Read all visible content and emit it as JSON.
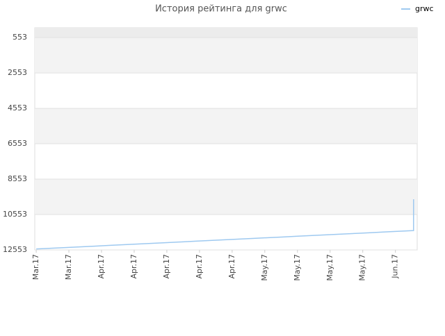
{
  "chart_data": {
    "type": "line",
    "title": "История рейтинга для grwc",
    "x": [
      0,
      4,
      8,
      12,
      16,
      20,
      24,
      28,
      32,
      36,
      40,
      44,
      48,
      52,
      56,
      60,
      64,
      68,
      72,
      76,
      80,
      84,
      88,
      92,
      96,
      100,
      104,
      104
    ],
    "series": [
      {
        "name": "grwc",
        "color": "#9ec9f0",
        "values": [
          12500,
          12460,
          12420,
          12380,
          12340,
          12300,
          12260,
          12220,
          12180,
          12140,
          12100,
          12060,
          12020,
          11980,
          11940,
          11900,
          11860,
          11820,
          11780,
          11740,
          11700,
          11660,
          11620,
          11580,
          11540,
          11500,
          11460,
          9690
        ]
      }
    ],
    "xlim": [
      -0.4,
      105
    ],
    "xticks": [
      {
        "value": 0,
        "label": "Mar.17"
      },
      {
        "value": 9,
        "label": "Mar.17"
      },
      {
        "value": 18,
        "label": "Apr.17"
      },
      {
        "value": 27,
        "label": "Apr.17"
      },
      {
        "value": 36,
        "label": "Apr.17"
      },
      {
        "value": 45,
        "label": "Apr.17"
      },
      {
        "value": 54,
        "label": "Apr.17"
      },
      {
        "value": 63,
        "label": "May.17"
      },
      {
        "value": 72,
        "label": "May.17"
      },
      {
        "value": 81,
        "label": "May.17"
      },
      {
        "value": 90,
        "label": "May.17"
      },
      {
        "value": 99,
        "label": "Jun.17"
      }
    ],
    "ylim": [
      12553,
      0
    ],
    "yticks": [
      553,
      2553,
      4553,
      6553,
      8553,
      10553,
      12553
    ],
    "grid": true,
    "legend": "top-right"
  }
}
